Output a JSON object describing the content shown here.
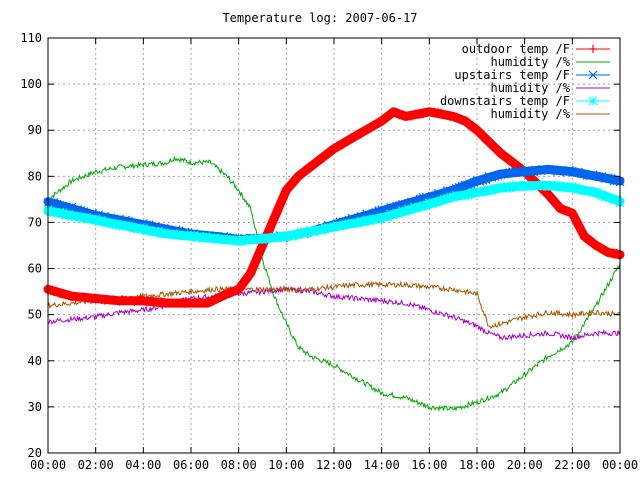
{
  "chart_data": {
    "type": "line",
    "title": "Temperature log: 2007-06-17",
    "xlabel": "",
    "ylabel": "",
    "x_unit": "hours",
    "xlim": [
      0,
      24
    ],
    "ylim": [
      20,
      110
    ],
    "x_ticks": [
      {
        "value": 0,
        "label": "00:00"
      },
      {
        "value": 2,
        "label": "02:00"
      },
      {
        "value": 4,
        "label": "04:00"
      },
      {
        "value": 6,
        "label": "06:00"
      },
      {
        "value": 8,
        "label": "08:00"
      },
      {
        "value": 10,
        "label": "10:00"
      },
      {
        "value": 12,
        "label": "12:00"
      },
      {
        "value": 14,
        "label": "14:00"
      },
      {
        "value": 16,
        "label": "16:00"
      },
      {
        "value": 18,
        "label": "18:00"
      },
      {
        "value": 20,
        "label": "20:00"
      },
      {
        "value": 22,
        "label": "22:00"
      },
      {
        "value": 24,
        "label": "00:00"
      }
    ],
    "y_ticks": [
      {
        "value": 20,
        "label": "20"
      },
      {
        "value": 30,
        "label": "30"
      },
      {
        "value": 40,
        "label": "40"
      },
      {
        "value": 50,
        "label": "50"
      },
      {
        "value": 60,
        "label": "60"
      },
      {
        "value": 70,
        "label": "70"
      },
      {
        "value": 80,
        "label": "80"
      },
      {
        "value": 90,
        "label": "90"
      },
      {
        "value": 100,
        "label": "100"
      },
      {
        "value": 110,
        "label": "110"
      }
    ],
    "grid": true,
    "legend_position": "top-right",
    "series": [
      {
        "name": "outdoor temp /F",
        "color": "#ff0000",
        "marker": "plus",
        "style": "thick",
        "x": [
          0,
          1,
          2,
          3,
          4,
          5,
          6,
          6.7,
          7.5,
          8,
          8.5,
          9,
          9.5,
          10,
          10.5,
          11,
          12,
          13,
          14,
          14.5,
          15,
          16,
          17,
          17.5,
          18,
          19,
          20,
          21,
          21.5,
          22,
          22.5,
          23,
          23.5,
          24
        ],
        "y": [
          55.5,
          54,
          53.5,
          53,
          53,
          52.5,
          52.5,
          52.5,
          54.5,
          55.5,
          59,
          65,
          71,
          77,
          80,
          82,
          86,
          89,
          92,
          94,
          93,
          94,
          93,
          92,
          90,
          85,
          81,
          76,
          73,
          72,
          67,
          65,
          63.5,
          63
        ]
      },
      {
        "name": "humidity /%",
        "color": "#00aa00",
        "marker": "none",
        "style": "noisy",
        "x": [
          0,
          1,
          2,
          3,
          4,
          5,
          5.3,
          6,
          6.8,
          7.5,
          8,
          8.5,
          9,
          9.5,
          10,
          10.5,
          11,
          12,
          13,
          14,
          15,
          16,
          17,
          18,
          19,
          20,
          21,
          22,
          23,
          24
        ],
        "y": [
          75,
          79,
          81,
          82,
          82.5,
          83,
          84,
          83,
          83,
          80,
          77,
          73,
          62,
          54,
          48,
          43,
          41,
          39,
          36,
          33,
          32,
          30,
          29.5,
          31,
          33,
          37,
          41,
          44,
          52,
          61
        ]
      },
      {
        "name": "upstairs temp /F",
        "color": "#0066ee",
        "marker": "x",
        "style": "thick",
        "x": [
          0,
          1,
          2,
          3,
          4,
          5,
          6,
          7,
          8,
          9,
          10,
          11,
          12,
          13,
          14,
          15,
          16,
          17,
          18,
          19,
          20,
          21,
          22,
          23,
          24
        ],
        "y": [
          74.5,
          73,
          71.5,
          70.5,
          69.5,
          68.5,
          67.5,
          67,
          66.3,
          66.5,
          67,
          68,
          69.5,
          71,
          72.5,
          74,
          75.5,
          77,
          79,
          80.5,
          81,
          81.5,
          81,
          80,
          79
        ]
      },
      {
        "name": "humidity /%",
        "color": "#aa00cc",
        "marker": "none",
        "style": "noisy",
        "x": [
          0,
          1,
          2,
          3,
          4,
          5,
          6,
          7,
          8,
          9,
          10,
          11,
          12,
          13,
          14,
          15,
          16,
          17,
          18,
          18.5,
          19,
          20,
          21,
          22,
          23,
          24
        ],
        "y": [
          48.5,
          49,
          49.5,
          50.5,
          51,
          52,
          53.5,
          54,
          54.5,
          55,
          55.5,
          55,
          54,
          53.5,
          53,
          52.5,
          51,
          49.5,
          47.5,
          46,
          45,
          45.5,
          46,
          45,
          46,
          46
        ]
      },
      {
        "name": "downstairs temp /F",
        "color": "#00ffff",
        "marker": "star",
        "style": "thick",
        "x": [
          0,
          1,
          2,
          3,
          4,
          5,
          6,
          7,
          8,
          9,
          10,
          11,
          12,
          13,
          14,
          15,
          16,
          17,
          18,
          19,
          20,
          21,
          22,
          23,
          24
        ],
        "y": [
          72.5,
          71.5,
          70.5,
          69.5,
          68.5,
          67.5,
          67,
          66.5,
          66,
          66.5,
          67,
          68,
          69,
          70,
          71,
          72.5,
          74,
          75.5,
          76.5,
          77.5,
          78,
          78,
          77.5,
          76.5,
          74.5
        ]
      },
      {
        "name": "humidity /%",
        "color": "#aa5500",
        "marker": "none",
        "style": "noisy",
        "x": [
          0,
          1,
          2,
          3,
          4,
          5,
          6,
          7,
          8,
          9,
          10,
          11,
          12,
          13,
          14,
          15,
          16,
          17,
          18,
          18.5,
          19,
          20,
          21,
          22,
          23,
          24
        ],
        "y": [
          52,
          52.5,
          53,
          53.5,
          54,
          54.5,
          55,
          55.5,
          55.5,
          55.5,
          55.5,
          55.5,
          56,
          56.5,
          56.5,
          56.5,
          56,
          55.5,
          54.5,
          47.5,
          48,
          49.5,
          50.5,
          50,
          50.5,
          50
        ]
      }
    ]
  }
}
